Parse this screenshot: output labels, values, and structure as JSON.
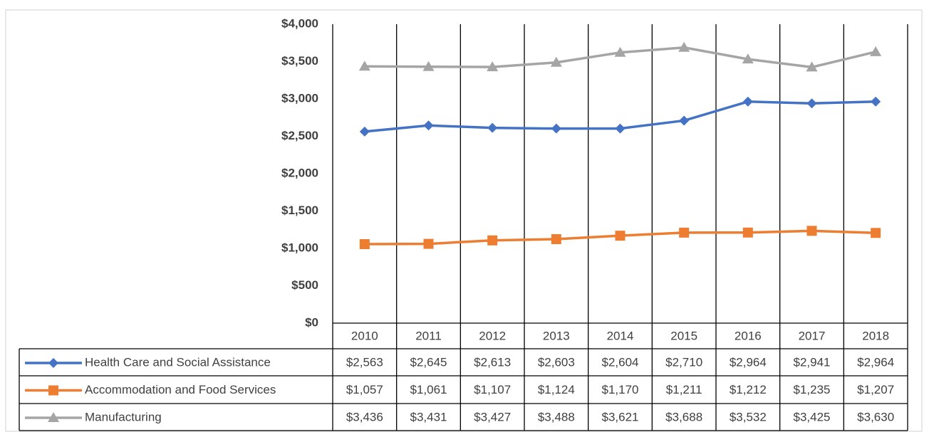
{
  "chart_data": {
    "type": "line",
    "categories": [
      "2010",
      "2011",
      "2012",
      "2013",
      "2014",
      "2015",
      "2016",
      "2017",
      "2018"
    ],
    "series": [
      {
        "name": "Health Care and Social Assistance",
        "color": "#4472c4",
        "marker": "diamond",
        "values": [
          2563,
          2645,
          2613,
          2603,
          2604,
          2710,
          2964,
          2941,
          2964
        ],
        "value_labels": [
          "$2,563",
          "$2,645",
          "$2,613",
          "$2,603",
          "$2,604",
          "$2,710",
          "$2,964",
          "$2,941",
          "$2,964"
        ]
      },
      {
        "name": "Accommodation and Food Services",
        "color": "#ed7d31",
        "marker": "square",
        "values": [
          1057,
          1061,
          1107,
          1124,
          1170,
          1211,
          1212,
          1235,
          1207
        ],
        "value_labels": [
          "$1,057",
          "$1,061",
          "$1,107",
          "$1,124",
          "$1,170",
          "$1,211",
          "$1,212",
          "$1,235",
          "$1,207"
        ]
      },
      {
        "name": "Manufacturing",
        "color": "#a5a5a5",
        "marker": "triangle",
        "values": [
          3436,
          3431,
          3427,
          3488,
          3621,
          3688,
          3532,
          3425,
          3630
        ],
        "value_labels": [
          "$3,436",
          "$3,431",
          "$3,427",
          "$3,488",
          "$3,621",
          "$3,688",
          "$3,532",
          "$3,425",
          "$3,630"
        ]
      }
    ],
    "ylim": [
      0,
      4000
    ],
    "yticks": [
      {
        "value": 0,
        "label": "$0"
      },
      {
        "value": 500,
        "label": "$500"
      },
      {
        "value": 1000,
        "label": "$1,000"
      },
      {
        "value": 1500,
        "label": "$1,500"
      },
      {
        "value": 2000,
        "label": "$2,000"
      },
      {
        "value": 2500,
        "label": "$2,500"
      },
      {
        "value": 3000,
        "label": "$3,000"
      },
      {
        "value": 3500,
        "label": "$3,500"
      },
      {
        "value": 4000,
        "label": "$4,000"
      }
    ],
    "grid": false
  }
}
